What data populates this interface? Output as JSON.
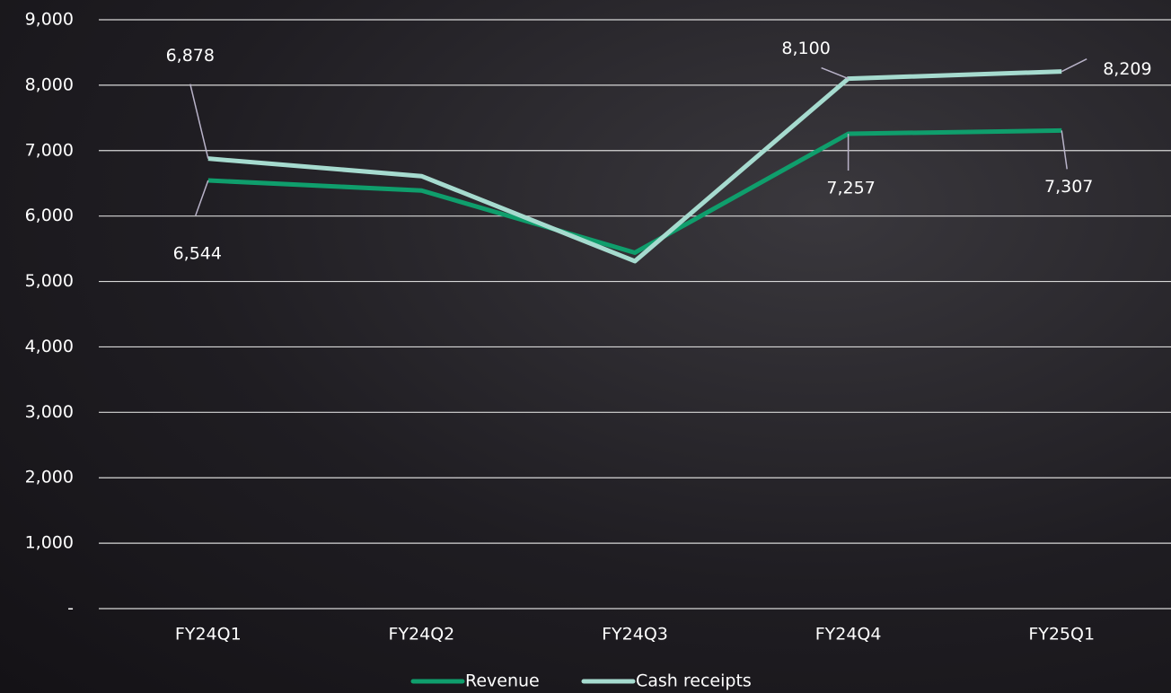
{
  "chart_data": {
    "type": "line",
    "categories": [
      "FY24Q1",
      "FY24Q2",
      "FY24Q3",
      "FY24Q4",
      "FY25Q1"
    ],
    "series": [
      {
        "name": "Revenue",
        "color": "#0f9e6c",
        "values": [
          6544,
          6390,
          5440,
          7257,
          7307
        ],
        "value_labels": [
          "6,544",
          null,
          null,
          "7,257",
          "7,307"
        ]
      },
      {
        "name": "Cash receipts",
        "color": "#a6dbcf",
        "values": [
          6878,
          6610,
          5310,
          8100,
          8209
        ],
        "value_labels": [
          "6,878",
          null,
          null,
          "8,100",
          "8,209"
        ]
      }
    ],
    "ylim": [
      0,
      9000
    ],
    "yticks": [
      {
        "value": 0,
        "label": "-"
      },
      {
        "value": 1000,
        "label": "1,000"
      },
      {
        "value": 2000,
        "label": "2,000"
      },
      {
        "value": 3000,
        "label": "3,000"
      },
      {
        "value": 4000,
        "label": "4,000"
      },
      {
        "value": 5000,
        "label": "5,000"
      },
      {
        "value": 6000,
        "label": "6,000"
      },
      {
        "value": 7000,
        "label": "7,000"
      },
      {
        "value": 8000,
        "label": "8,000"
      },
      {
        "value": 9000,
        "label": "9,000"
      }
    ],
    "grid": true,
    "legend": "bottom"
  }
}
